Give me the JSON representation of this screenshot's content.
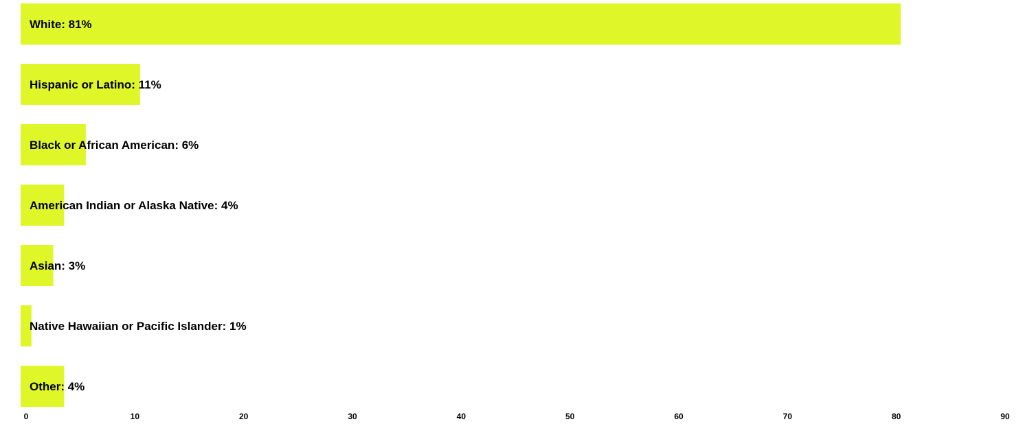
{
  "chart_data": {
    "type": "bar",
    "orientation": "horizontal",
    "categories": [
      "White",
      "Hispanic or Latino",
      "Black or African American",
      "American Indian or Alaska Native",
      "Asian",
      "Native Hawaiian or Pacific Islander",
      "Other"
    ],
    "values": [
      81,
      11,
      6,
      4,
      3,
      1,
      4
    ],
    "labels": [
      "White: 81%",
      "Hispanic or Latino: 11%",
      "Black or African American: 6%",
      "American Indian or Alaska Native: 4%",
      "Asian: 3%",
      "Native Hawaiian or Pacific Islander: 1%",
      "Other: 4%"
    ],
    "x_ticks": [
      "0",
      "10",
      "20",
      "30",
      "40",
      "50",
      "60",
      "70",
      "80",
      "90"
    ],
    "xlim": [
      0,
      90
    ],
    "title": "",
    "xlabel": "",
    "ylabel": "",
    "grid": false,
    "legend": "none",
    "colors": {
      "bar": "#dff628",
      "text": "#000000"
    }
  }
}
